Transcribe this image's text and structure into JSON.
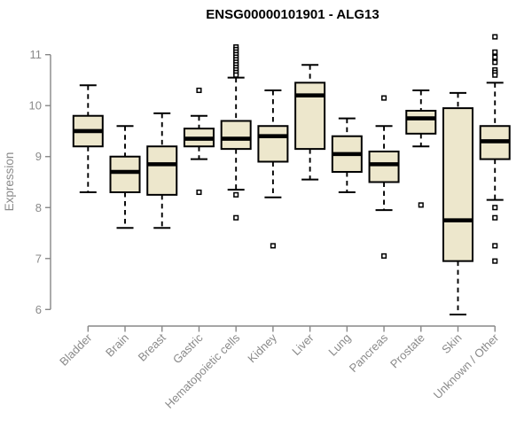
{
  "chart_data": {
    "type": "boxplot",
    "title": "ENSG00000101901 - ALG13",
    "ylabel": "Expression",
    "xlabel": "",
    "ylim": [
      5.8,
      11.45
    ],
    "yticks": [
      6,
      7,
      8,
      9,
      10,
      11
    ],
    "grid": false,
    "legend": "none",
    "categories": [
      "Bladder",
      "Brain",
      "Breast",
      "Gastric",
      "Hematopoietic cells",
      "Kidney",
      "Liver",
      "Lung",
      "Pancreas",
      "Prostate",
      "Skin",
      "Unknown / Other"
    ],
    "series": [
      {
        "category": "Bladder",
        "whisker_low": 8.3,
        "q1": 9.2,
        "median": 9.5,
        "q3": 9.8,
        "whisker_high": 10.4,
        "outliers": []
      },
      {
        "category": "Brain",
        "whisker_low": 7.6,
        "q1": 8.3,
        "median": 8.7,
        "q3": 9.0,
        "whisker_high": 9.6,
        "outliers": []
      },
      {
        "category": "Breast",
        "whisker_low": 7.6,
        "q1": 8.25,
        "median": 8.85,
        "q3": 9.2,
        "whisker_high": 9.85,
        "outliers": []
      },
      {
        "category": "Gastric",
        "whisker_low": 8.95,
        "q1": 9.2,
        "median": 9.35,
        "q3": 9.55,
        "whisker_high": 9.8,
        "outliers": [
          10.3,
          8.3
        ]
      },
      {
        "category": "Hematopoietic cells",
        "whisker_low": 8.35,
        "q1": 9.15,
        "median": 9.35,
        "q3": 9.7,
        "whisker_high": 10.55,
        "outliers": [
          11.15,
          11.1,
          11.05,
          11.0,
          10.95,
          10.9,
          10.85,
          10.8,
          10.75,
          10.7,
          10.65,
          10.6,
          8.25,
          7.8
        ]
      },
      {
        "category": "Kidney",
        "whisker_low": 8.2,
        "q1": 8.9,
        "median": 9.4,
        "q3": 9.6,
        "whisker_high": 10.3,
        "outliers": [
          7.25
        ]
      },
      {
        "category": "Liver",
        "whisker_low": 8.55,
        "q1": 9.15,
        "median": 10.2,
        "q3": 10.45,
        "whisker_high": 10.8,
        "outliers": []
      },
      {
        "category": "Lung",
        "whisker_low": 8.3,
        "q1": 8.7,
        "median": 9.05,
        "q3": 9.4,
        "whisker_high": 9.75,
        "outliers": []
      },
      {
        "category": "Pancreas",
        "whisker_low": 7.95,
        "q1": 8.5,
        "median": 8.85,
        "q3": 9.1,
        "whisker_high": 9.6,
        "outliers": [
          10.15,
          7.05
        ]
      },
      {
        "category": "Prostate",
        "whisker_low": 9.2,
        "q1": 9.45,
        "median": 9.75,
        "q3": 9.9,
        "whisker_high": 10.3,
        "outliers": [
          8.05
        ]
      },
      {
        "category": "Skin",
        "whisker_low": 5.9,
        "q1": 6.95,
        "median": 7.75,
        "q3": 9.95,
        "whisker_high": 10.25,
        "outliers": []
      },
      {
        "category": "Unknown / Other",
        "whisker_low": 8.15,
        "q1": 8.95,
        "median": 9.3,
        "q3": 9.6,
        "whisker_high": 10.45,
        "outliers": [
          11.35,
          11.05,
          10.95,
          10.85,
          10.7,
          10.65,
          10.6,
          8.0,
          7.8,
          7.25,
          6.95
        ]
      }
    ],
    "colors": {
      "box_fill": "#EDE7CC",
      "box_stroke": "#000000",
      "median": "#000000",
      "whisker": "#000000",
      "outlier_stroke": "#000000",
      "axis": "#878787",
      "tick_label": "#8a8a8a",
      "title": "#000000",
      "background": "#ffffff"
    }
  }
}
